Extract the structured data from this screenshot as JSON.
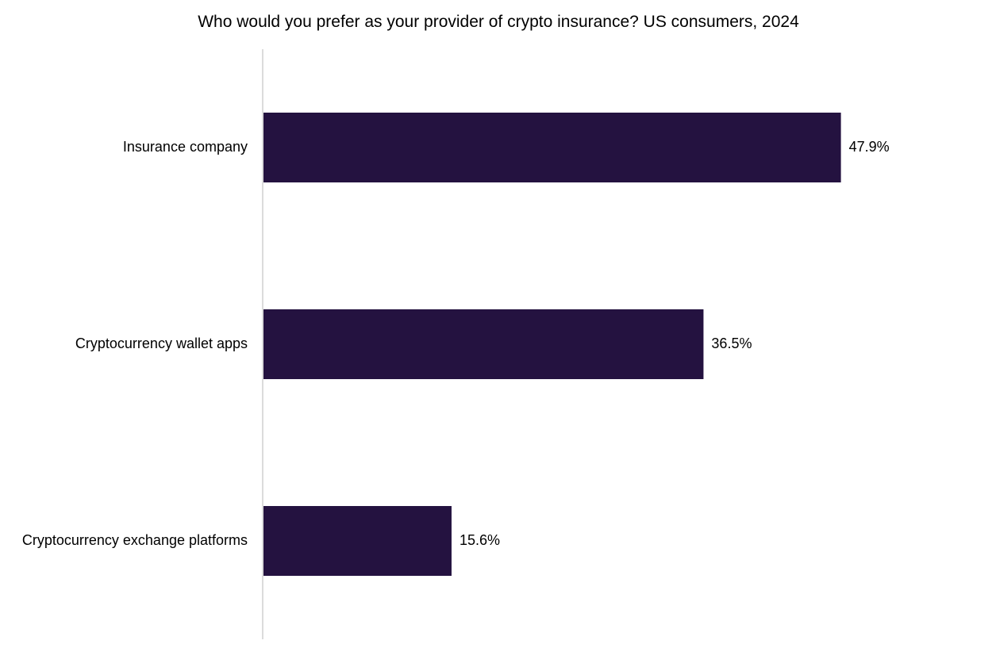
{
  "chart_data": {
    "type": "bar",
    "orientation": "horizontal",
    "title": "Who would you prefer as your provider of crypto insurance? US consumers, 2024",
    "categories": [
      "Insurance company",
      "Cryptocurrency wallet apps",
      "Cryptocurrency exchange platforms"
    ],
    "values": [
      47.9,
      36.5,
      15.6
    ],
    "data_labels": [
      "47.9%",
      "36.5%",
      "15.6%"
    ],
    "unit": "%",
    "xlim": [
      0,
      70
    ],
    "grid": false,
    "legend": "none",
    "colors": {
      "bar": "#241240",
      "axis": "#d0d0d0",
      "text": "#000000"
    }
  }
}
